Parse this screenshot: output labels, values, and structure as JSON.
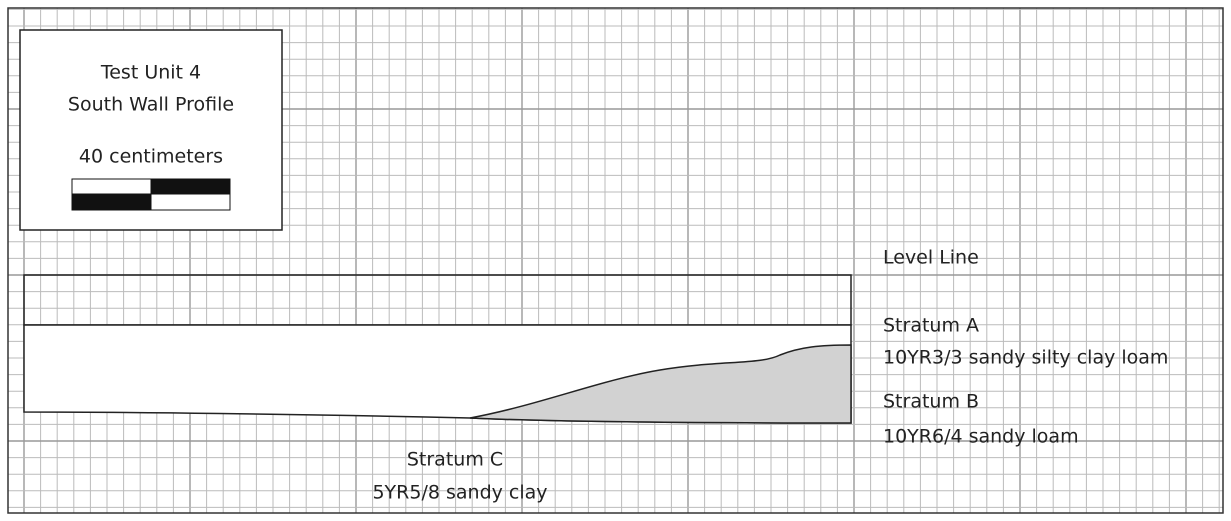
{
  "legend": {
    "title": "Test Unit 4",
    "subtitle": "South Wall Profile",
    "scale": "40 centimeters"
  },
  "labels": {
    "level_line": "Level Line",
    "stratum_a": "Stratum A",
    "stratum_a_soil": "10YR3/3 sandy silty clay loam",
    "stratum_b": "Stratum B",
    "stratum_b_soil": "10YR6/4 sandy loam",
    "stratum_c": "Stratum C",
    "stratum_c_soil": "5YR5/8 sandy clay"
  }
}
